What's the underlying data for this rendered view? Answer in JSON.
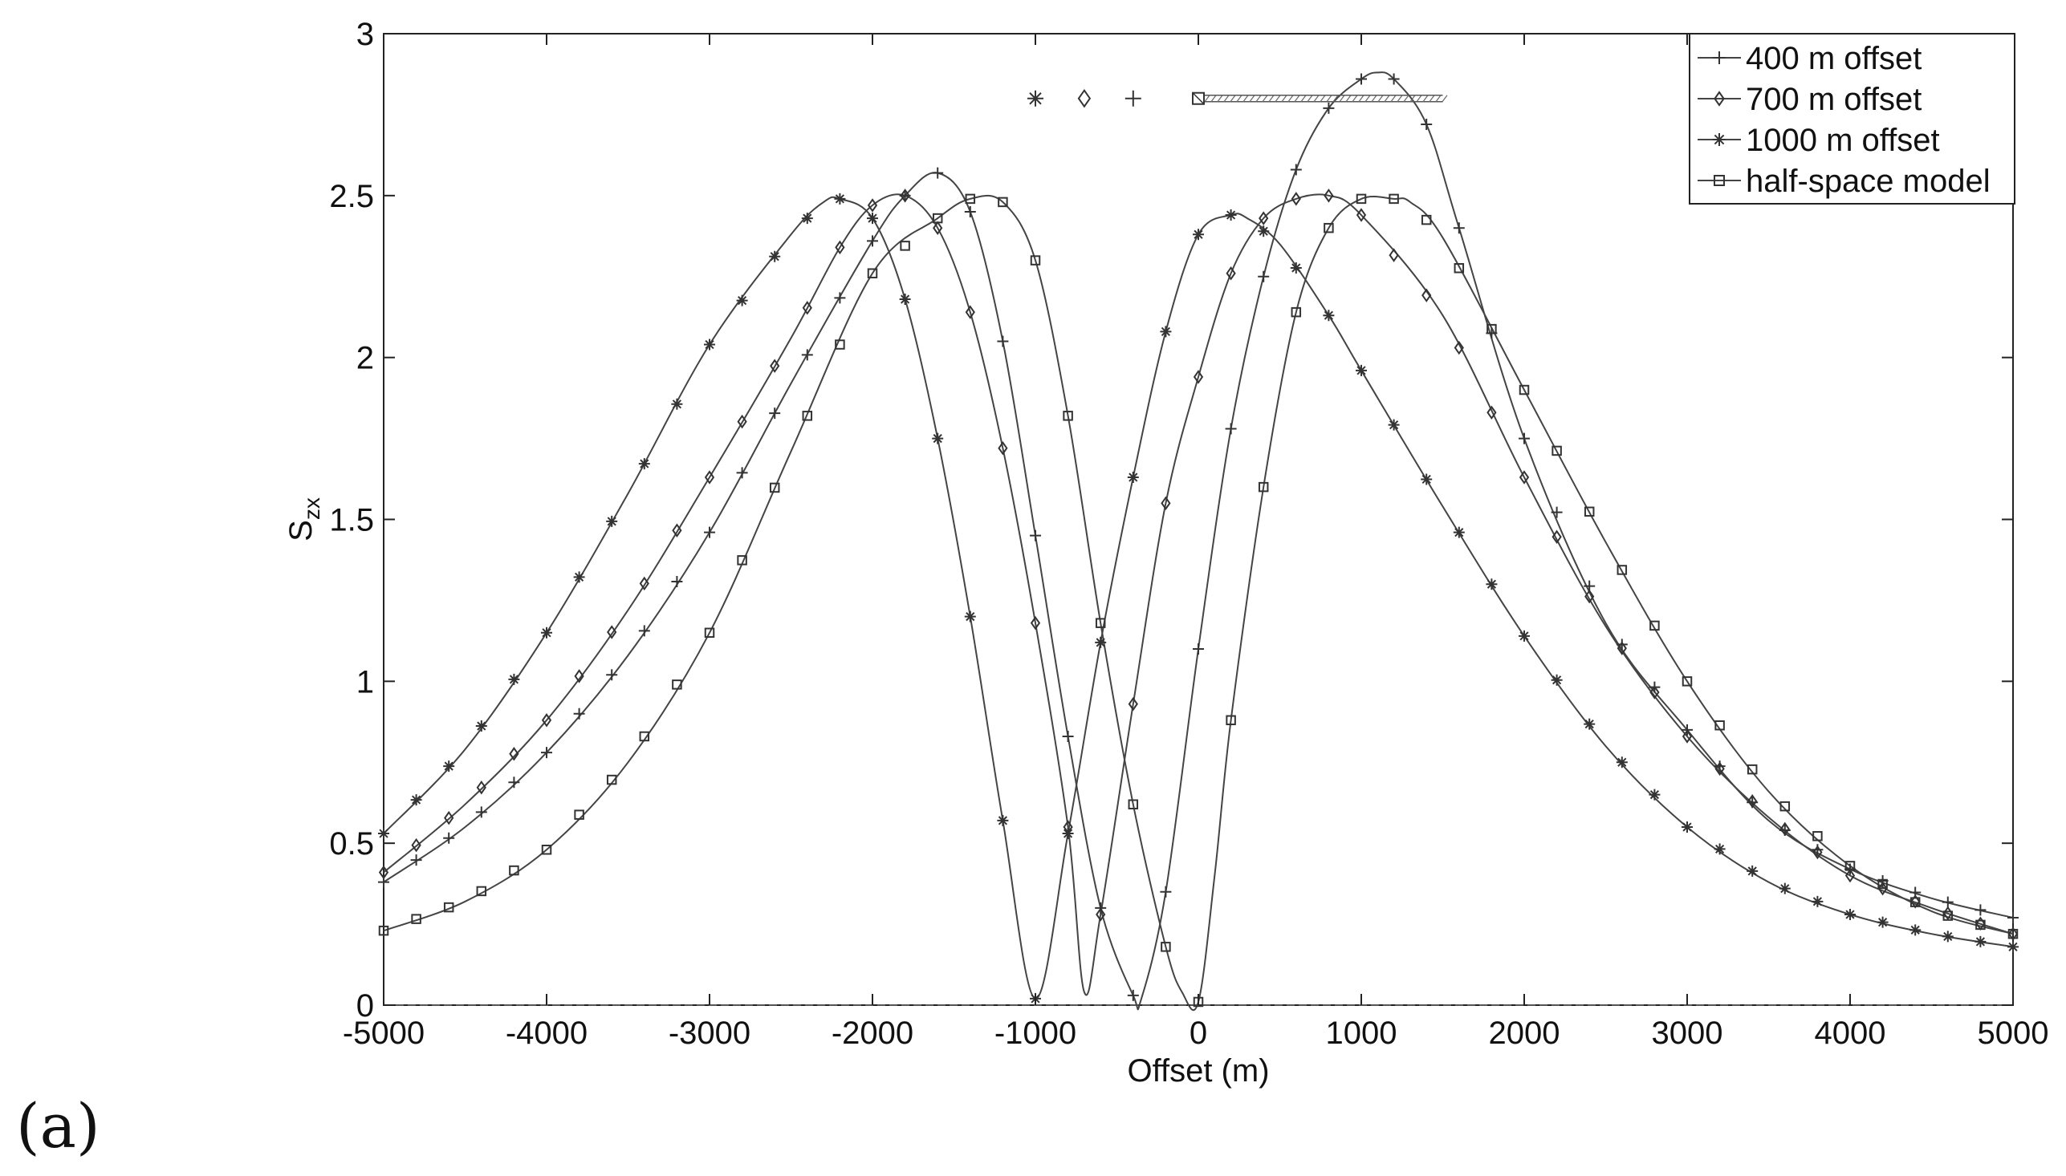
{
  "panel_label": "(a)",
  "chart_data": {
    "type": "line",
    "xlabel": "Offset (m)",
    "ylabel_main": "S",
    "ylabel_sub": "zx",
    "xlim": [
      -5000,
      5000
    ],
    "ylim": [
      0,
      3
    ],
    "xticks": [
      -5000,
      -4000,
      -3000,
      -2000,
      -1000,
      0,
      1000,
      2000,
      3000,
      4000,
      5000
    ],
    "yticks": [
      0,
      0.5,
      1,
      1.5,
      2,
      2.5,
      3
    ],
    "ytick_labels": [
      "0",
      "0.5",
      "1",
      "1.5",
      "2",
      "2.5",
      "3"
    ],
    "grid": false,
    "legend_position": "top-right",
    "series": [
      {
        "name": "400 m offset",
        "marker": "plus",
        "source_offset": 400,
        "x": [
          -5000,
          -4500,
          -4000,
          -3500,
          -3000,
          -2500,
          -2000,
          -1800,
          -1600,
          -1400,
          -1200,
          -1000,
          -800,
          -600,
          -400,
          -350,
          -200,
          0,
          200,
          400,
          600,
          800,
          1000,
          1100,
          1200,
          1400,
          1600,
          2000,
          2500,
          3000,
          3500,
          4000,
          4500,
          5000
        ],
        "y": [
          0.38,
          0.55,
          0.78,
          1.08,
          1.46,
          1.92,
          2.36,
          2.5,
          2.57,
          2.45,
          2.05,
          1.45,
          0.83,
          0.3,
          0.03,
          0.02,
          0.35,
          1.1,
          1.78,
          2.25,
          2.58,
          2.77,
          2.86,
          2.88,
          2.86,
          2.72,
          2.4,
          1.75,
          1.18,
          0.85,
          0.57,
          0.42,
          0.33,
          0.27
        ]
      },
      {
        "name": "700 m offset",
        "marker": "diamond",
        "source_offset": 700,
        "x": [
          -5000,
          -4500,
          -4000,
          -3500,
          -3000,
          -2500,
          -2200,
          -2000,
          -1800,
          -1600,
          -1400,
          -1200,
          -1000,
          -800,
          -700,
          -600,
          -400,
          -200,
          0,
          200,
          400,
          600,
          800,
          1000,
          1500,
          2000,
          2500,
          3000,
          3500,
          4000,
          4500,
          5000
        ],
        "y": [
          0.41,
          0.62,
          0.88,
          1.22,
          1.63,
          2.06,
          2.34,
          2.47,
          2.5,
          2.4,
          2.14,
          1.72,
          1.18,
          0.55,
          0.04,
          0.28,
          0.93,
          1.55,
          1.94,
          2.26,
          2.43,
          2.49,
          2.5,
          2.44,
          2.13,
          1.63,
          1.17,
          0.83,
          0.58,
          0.4,
          0.3,
          0.22
        ]
      },
      {
        "name": "1000 m offset",
        "marker": "star",
        "source_offset": 1000,
        "x": [
          -5000,
          -4500,
          -4000,
          -3500,
          -3000,
          -2500,
          -2300,
          -2200,
          -2000,
          -1800,
          -1600,
          -1400,
          -1200,
          -1000,
          -800,
          -600,
          -400,
          -200,
          0,
          200,
          300,
          500,
          800,
          1000,
          1500,
          2000,
          2500,
          3000,
          3500,
          4000,
          4500,
          5000
        ],
        "y": [
          0.53,
          0.79,
          1.15,
          1.58,
          2.04,
          2.38,
          2.48,
          2.49,
          2.43,
          2.18,
          1.75,
          1.2,
          0.57,
          0.02,
          0.53,
          1.12,
          1.63,
          2.08,
          2.38,
          2.44,
          2.43,
          2.35,
          2.13,
          1.96,
          1.54,
          1.14,
          0.8,
          0.55,
          0.38,
          0.28,
          0.22,
          0.18
        ]
      },
      {
        "name": "half-space model",
        "marker": "square",
        "source_offset": 0,
        "x": [
          -5000,
          -4500,
          -4000,
          -3500,
          -3000,
          -2500,
          -2000,
          -1600,
          -1400,
          -1200,
          -1000,
          -800,
          -600,
          -400,
          -200,
          -100,
          0,
          100,
          200,
          400,
          600,
          800,
          1000,
          1200,
          1300,
          1500,
          2000,
          2500,
          3000,
          3500,
          4000,
          4500,
          5000
        ],
        "y": [
          0.23,
          0.32,
          0.48,
          0.75,
          1.15,
          1.71,
          2.26,
          2.43,
          2.49,
          2.48,
          2.3,
          1.82,
          1.18,
          0.62,
          0.18,
          0.04,
          0.01,
          0.4,
          0.88,
          1.6,
          2.14,
          2.4,
          2.49,
          2.49,
          2.48,
          2.37,
          1.9,
          1.43,
          1.0,
          0.66,
          0.43,
          0.29,
          0.22
        ]
      }
    ],
    "annotations": {
      "receiver_markers": [
        {
          "x": -1000,
          "y": 2.8,
          "marker": "star"
        },
        {
          "x": -700,
          "y": 2.8,
          "marker": "diamond"
        },
        {
          "x": -400,
          "y": 2.8,
          "marker": "plus"
        }
      ],
      "transmitter_line": {
        "x_start": 0,
        "x_end": 1500,
        "y": 2.8
      }
    }
  }
}
